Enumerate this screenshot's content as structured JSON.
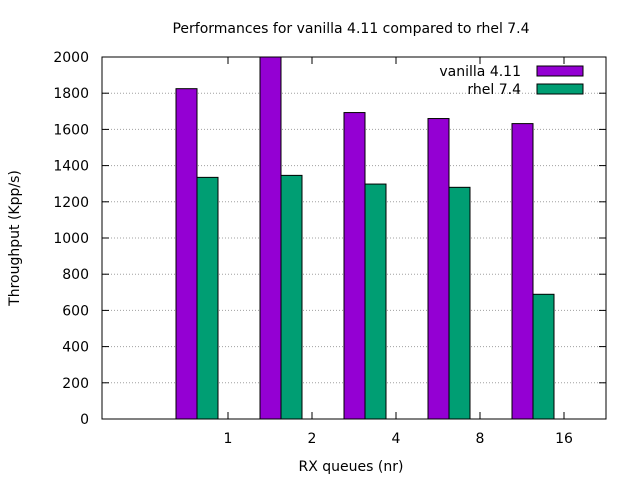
{
  "chart_data": {
    "type": "bar",
    "title": "Performances for vanilla 4.11 compared to rhel 7.4",
    "xlabel": "RX queues (nr)",
    "ylabel": "Throughput (Kpp/s)",
    "categories": [
      "1",
      "2",
      "4",
      "8",
      "16"
    ],
    "ylim": [
      0,
      2000
    ],
    "yticks": [
      "0",
      "200",
      "400",
      "600",
      "800",
      "1000",
      "1200",
      "1400",
      "1600",
      "1800",
      "2000"
    ],
    "grid": true,
    "legend_position": "top-right",
    "series": [
      {
        "name": "vanilla 4.11",
        "color": "#9400d3",
        "values": [
          1825,
          2000,
          1693,
          1660,
          1632
        ]
      },
      {
        "name": "rhel 7.4",
        "color": "#009e73",
        "values": [
          1335,
          1346,
          1298,
          1280,
          689
        ]
      }
    ]
  }
}
